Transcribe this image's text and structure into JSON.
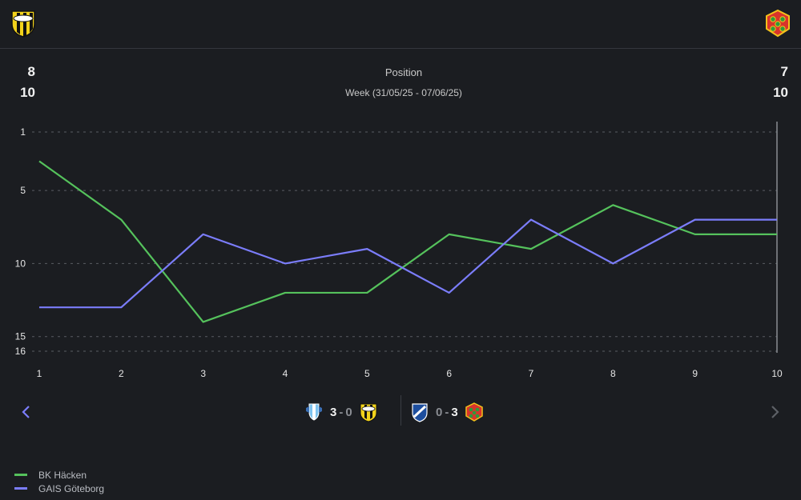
{
  "header": {
    "home_crest": "bk-hacken-crest-icon",
    "away_crest": "gais-crest-icon"
  },
  "positions": {
    "home_current": "8",
    "home_total": "10",
    "away_current": "7",
    "away_total": "10",
    "title": "Position",
    "subtitle": "Week (31/05/25 - 07/06/25)"
  },
  "chart_data": {
    "type": "line",
    "title": "Position",
    "xlabel": "",
    "ylabel": "",
    "x": [
      1,
      2,
      3,
      4,
      5,
      6,
      7,
      8,
      9,
      10
    ],
    "y_ticks": [
      1,
      5,
      10,
      15,
      16
    ],
    "ylim": [
      16,
      1
    ],
    "y_inverted": true,
    "grid": "horizontal-dashed",
    "highlight_x": 10,
    "series": [
      {
        "name": "BK Häcken",
        "color": "#55c25c",
        "values": [
          3,
          7,
          14,
          12,
          12,
          8,
          9,
          6,
          8,
          8
        ]
      },
      {
        "name": "GAIS Göteborg",
        "color": "#7b7dfb",
        "values": [
          13,
          13,
          8,
          10,
          9,
          12,
          7,
          10,
          7,
          7
        ]
      }
    ],
    "legend_position": "bottom-left"
  },
  "matches": [
    {
      "home_icon": "malmo-ff-crest-icon",
      "home_score": "3",
      "separator": "-",
      "away_score": "0",
      "away_icon": "bk-hacken-crest-icon"
    },
    {
      "home_icon": "ifk-norrkoping-crest-icon",
      "home_score": "0",
      "separator": "-",
      "away_score": "3",
      "away_icon": "gais-crest-icon"
    }
  ],
  "nav": {
    "prev_icon": "chevron-left-icon",
    "next_icon": "chevron-right-icon"
  },
  "legend": [
    {
      "label": "BK Häcken",
      "color": "#55c25c"
    },
    {
      "label": "GAIS Göteborg",
      "color": "#7b7dfb"
    }
  ]
}
